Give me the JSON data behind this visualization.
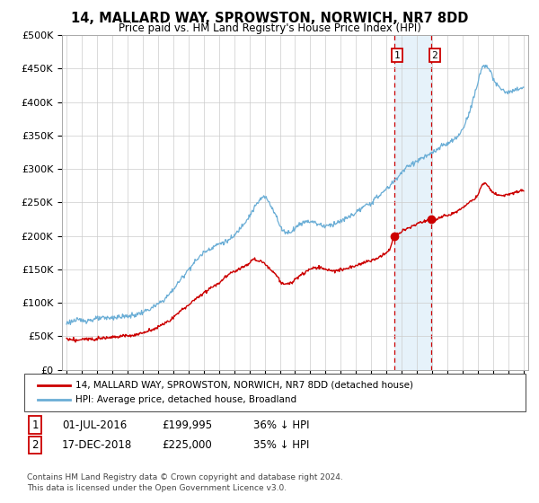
{
  "title": "14, MALLARD WAY, SPROWSTON, NORWICH, NR7 8DD",
  "subtitle": "Price paid vs. HM Land Registry's House Price Index (HPI)",
  "ylabel_ticks": [
    "£0",
    "£50K",
    "£100K",
    "£150K",
    "£200K",
    "£250K",
    "£300K",
    "£350K",
    "£400K",
    "£450K",
    "£500K"
  ],
  "ytick_values": [
    0,
    50000,
    100000,
    150000,
    200000,
    250000,
    300000,
    350000,
    400000,
    450000,
    500000
  ],
  "x_start_year": 1995,
  "x_end_year": 2025,
  "hpi_color": "#6baed6",
  "price_color": "#cc0000",
  "transaction1_date": 2016.5,
  "transaction1_price": 199995,
  "transaction2_date": 2018.96,
  "transaction2_price": 225000,
  "legend_property": "14, MALLARD WAY, SPROWSTON, NORWICH, NR7 8DD (detached house)",
  "legend_hpi": "HPI: Average price, detached house, Broadland",
  "footer1": "Contains HM Land Registry data © Crown copyright and database right 2024.",
  "footer2": "This data is licensed under the Open Government Licence v3.0.",
  "row1_date": "01-JUL-2016",
  "row1_price": "£199,995",
  "row1_hpi": "36% ↓ HPI",
  "row2_date": "17-DEC-2018",
  "row2_price": "£225,000",
  "row2_hpi": "35% ↓ HPI"
}
